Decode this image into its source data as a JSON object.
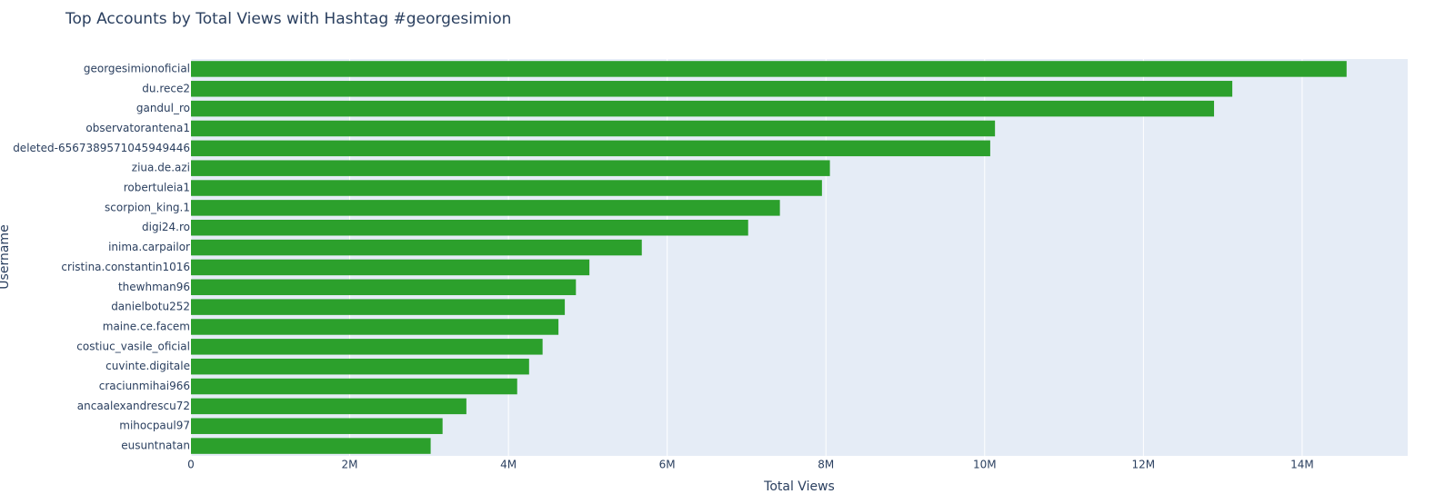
{
  "chart_data": {
    "type": "bar",
    "orientation": "h",
    "title": "Top Accounts by Total Views with Hashtag #georgesimion",
    "x_label": "Total Views",
    "y_label": "Username",
    "categories": [
      "georgesimionoficial",
      "du.rece2",
      "gandul_ro",
      "observatorantena1",
      "deleted-6567389571045949446",
      "ziua.de.azi",
      "robertuleia1",
      "scorpion_king.1",
      "digi24.ro",
      "inima.carpailor",
      "cristina.constantin1016",
      "thewhman96",
      "danielbotu252",
      "maine.ce.facem",
      "costiuc_vasile_oficial",
      "cuvinte.digitale",
      "craciunmihai966",
      "ancaalexandrescu72",
      "mihocpaul97",
      "eusuntnatan"
    ],
    "values": [
      14560000,
      13120000,
      12890000,
      10130000,
      10070000,
      8050000,
      7950000,
      7420000,
      7020000,
      5680000,
      5020000,
      4850000,
      4710000,
      4630000,
      4430000,
      4260000,
      4110000,
      3470000,
      3170000,
      3020000
    ],
    "color": "#2ca02c",
    "xlim": [
      0,
      15330000
    ],
    "xticks": [
      0,
      {
        "value": 2000000,
        "label": "2M"
      },
      {
        "value": 4000000,
        "label": "4M"
      },
      {
        "value": 6000000,
        "label": "6M"
      },
      {
        "value": 8000000,
        "label": "8M"
      },
      {
        "value": 10000000,
        "label": "10M"
      },
      {
        "value": 12000000,
        "label": "12M"
      },
      {
        "value": 14000000,
        "label": "14M"
      }
    ],
    "grid": true
  }
}
